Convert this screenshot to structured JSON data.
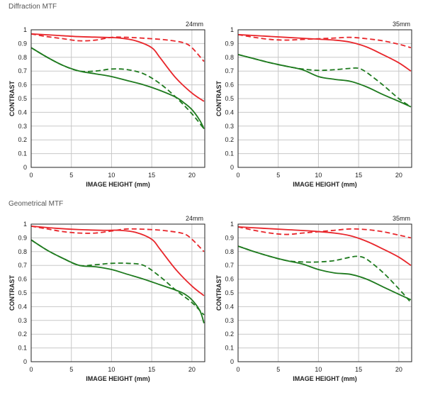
{
  "sections": [
    {
      "label": "Diffraction MTF"
    },
    {
      "label": "Geometrical MTF"
    }
  ],
  "colors": {
    "red": "#e8262b",
    "green": "#1e7a1e",
    "grid": "#c8c8c8",
    "frame": "#222222"
  },
  "chart_data": [
    {
      "type": "line",
      "section": "Diffraction MTF",
      "focal_label": "24mm",
      "xlabel": "IMAGE HEIGHT (mm)",
      "ylabel": "CONTRAST",
      "xlim": [
        0,
        21.6
      ],
      "ylim": [
        0,
        1
      ],
      "xticks": [
        0,
        5,
        10,
        15,
        20
      ],
      "yticks": [
        0,
        0.1,
        0.2,
        0.3,
        0.4,
        0.5,
        0.6,
        0.7,
        0.8,
        0.9,
        1
      ],
      "ytick_labels": [
        "0",
        "0.1",
        "0.2",
        "0.3",
        "0.4",
        "0.5",
        "0.6",
        "0.7",
        "0.8",
        "0.9",
        "1"
      ],
      "grid": true,
      "series": [
        {
          "color": "red",
          "dash": false,
          "points": [
            [
              0,
              0.97
            ],
            [
              3,
              0.96
            ],
            [
              6,
              0.95
            ],
            [
              9,
              0.945
            ],
            [
              11,
              0.94
            ],
            [
              13,
              0.92
            ],
            [
              15,
              0.87
            ],
            [
              16,
              0.8
            ],
            [
              18,
              0.65
            ],
            [
              20,
              0.54
            ],
            [
              21.5,
              0.48
            ]
          ]
        },
        {
          "color": "red",
          "dash": true,
          "points": [
            [
              0,
              0.97
            ],
            [
              2,
              0.95
            ],
            [
              4,
              0.935
            ],
            [
              6,
              0.92
            ],
            [
              8,
              0.925
            ],
            [
              10,
              0.945
            ],
            [
              12,
              0.945
            ],
            [
              15,
              0.935
            ],
            [
              17,
              0.925
            ],
            [
              19,
              0.905
            ],
            [
              20,
              0.87
            ],
            [
              21.5,
              0.77
            ]
          ]
        },
        {
          "color": "green",
          "dash": false,
          "points": [
            [
              0,
              0.87
            ],
            [
              2,
              0.8
            ],
            [
              4,
              0.74
            ],
            [
              6,
              0.7
            ],
            [
              8,
              0.68
            ],
            [
              10,
              0.66
            ],
            [
              12,
              0.63
            ],
            [
              14,
              0.6
            ],
            [
              16,
              0.56
            ],
            [
              18,
              0.51
            ],
            [
              19,
              0.47
            ],
            [
              20,
              0.42
            ],
            [
              21,
              0.34
            ],
            [
              21.5,
              0.28
            ]
          ]
        },
        {
          "color": "green",
          "dash": true,
          "points": [
            [
              0,
              0.87
            ],
            [
              2,
              0.8
            ],
            [
              4,
              0.74
            ],
            [
              6,
              0.7
            ],
            [
              8,
              0.7
            ],
            [
              10,
              0.715
            ],
            [
              12,
              0.71
            ],
            [
              14,
              0.68
            ],
            [
              16,
              0.61
            ],
            [
              18,
              0.51
            ],
            [
              20,
              0.39
            ],
            [
              21.5,
              0.28
            ]
          ]
        }
      ]
    },
    {
      "type": "line",
      "section": "Diffraction MTF",
      "focal_label": "35mm",
      "xlabel": "IMAGE HEIGHT (mm)",
      "ylabel": "CONTRAST",
      "xlim": [
        0,
        21.6
      ],
      "ylim": [
        0,
        1
      ],
      "xticks": [
        0,
        5,
        10,
        15,
        20
      ],
      "yticks": [
        0,
        0.1,
        0.2,
        0.3,
        0.4,
        0.5,
        0.6,
        0.7,
        0.8,
        0.9,
        1
      ],
      "ytick_labels": [
        "0",
        "0.1",
        "0.2",
        "0.3",
        "0.4",
        "0.5",
        "0.6",
        "0.7",
        "0.8",
        "0.9",
        "1"
      ],
      "grid": true,
      "series": [
        {
          "color": "red",
          "dash": false,
          "points": [
            [
              0,
              0.965
            ],
            [
              3,
              0.955
            ],
            [
              6,
              0.945
            ],
            [
              9,
              0.935
            ],
            [
              12,
              0.925
            ],
            [
              14,
              0.91
            ],
            [
              16,
              0.875
            ],
            [
              18,
              0.82
            ],
            [
              20,
              0.76
            ],
            [
              21.5,
              0.7
            ]
          ]
        },
        {
          "color": "red",
          "dash": true,
          "points": [
            [
              0,
              0.965
            ],
            [
              2,
              0.945
            ],
            [
              4,
              0.93
            ],
            [
              6,
              0.925
            ],
            [
              8,
              0.93
            ],
            [
              10,
              0.935
            ],
            [
              12,
              0.94
            ],
            [
              14,
              0.945
            ],
            [
              16,
              0.935
            ],
            [
              18,
              0.92
            ],
            [
              20,
              0.895
            ],
            [
              21.5,
              0.87
            ]
          ]
        },
        {
          "color": "green",
          "dash": false,
          "points": [
            [
              0,
              0.82
            ],
            [
              2,
              0.79
            ],
            [
              4,
              0.76
            ],
            [
              6,
              0.735
            ],
            [
              8,
              0.71
            ],
            [
              10,
              0.66
            ],
            [
              12,
              0.64
            ],
            [
              14,
              0.625
            ],
            [
              16,
              0.585
            ],
            [
              18,
              0.53
            ],
            [
              20,
              0.48
            ],
            [
              21.5,
              0.44
            ]
          ]
        },
        {
          "color": "green",
          "dash": true,
          "points": [
            [
              0,
              0.82
            ],
            [
              2,
              0.79
            ],
            [
              4,
              0.76
            ],
            [
              6,
              0.735
            ],
            [
              8,
              0.715
            ],
            [
              10,
              0.705
            ],
            [
              12,
              0.71
            ],
            [
              14,
              0.72
            ],
            [
              15,
              0.72
            ],
            [
              16,
              0.69
            ],
            [
              18,
              0.6
            ],
            [
              20,
              0.5
            ],
            [
              21.5,
              0.44
            ]
          ]
        }
      ]
    },
    {
      "type": "line",
      "section": "Geometrical MTF",
      "focal_label": "24mm",
      "xlabel": "IMAGE HEIGHT (mm)",
      "ylabel": "CONTRAST",
      "xlim": [
        0,
        21.6
      ],
      "ylim": [
        0,
        1
      ],
      "xticks": [
        0,
        5,
        10,
        15,
        20
      ],
      "yticks": [
        0,
        0.1,
        0.2,
        0.3,
        0.4,
        0.5,
        0.6,
        0.7,
        0.8,
        0.9,
        1
      ],
      "ytick_labels": [
        "0",
        "0.1",
        "0.2",
        "0.3",
        "0.4",
        "0.5",
        "0.6",
        "0.7",
        "0.8",
        "0.9",
        "1"
      ],
      "grid": true,
      "series": [
        {
          "color": "red",
          "dash": false,
          "points": [
            [
              0,
              0.985
            ],
            [
              3,
              0.97
            ],
            [
              6,
              0.96
            ],
            [
              9,
              0.955
            ],
            [
              11,
              0.955
            ],
            [
              13,
              0.94
            ],
            [
              15,
              0.89
            ],
            [
              16,
              0.82
            ],
            [
              18,
              0.67
            ],
            [
              20,
              0.55
            ],
            [
              21.5,
              0.48
            ]
          ]
        },
        {
          "color": "red",
          "dash": true,
          "points": [
            [
              0,
              0.985
            ],
            [
              2,
              0.965
            ],
            [
              4,
              0.945
            ],
            [
              6,
              0.935
            ],
            [
              8,
              0.935
            ],
            [
              10,
              0.95
            ],
            [
              12,
              0.965
            ],
            [
              15,
              0.96
            ],
            [
              17,
              0.95
            ],
            [
              19,
              0.93
            ],
            [
              20,
              0.89
            ],
            [
              21.5,
              0.8
            ]
          ]
        },
        {
          "color": "green",
          "dash": false,
          "points": [
            [
              0,
              0.885
            ],
            [
              2,
              0.81
            ],
            [
              4,
              0.75
            ],
            [
              6,
              0.7
            ],
            [
              8,
              0.69
            ],
            [
              10,
              0.67
            ],
            [
              12,
              0.635
            ],
            [
              14,
              0.6
            ],
            [
              16,
              0.56
            ],
            [
              18,
              0.52
            ],
            [
              19,
              0.495
            ],
            [
              20,
              0.45
            ],
            [
              21,
              0.37
            ],
            [
              21.5,
              0.28
            ]
          ]
        },
        {
          "color": "green",
          "dash": true,
          "points": [
            [
              0,
              0.885
            ],
            [
              2,
              0.81
            ],
            [
              4,
              0.75
            ],
            [
              6,
              0.7
            ],
            [
              8,
              0.705
            ],
            [
              10,
              0.715
            ],
            [
              12,
              0.715
            ],
            [
              14,
              0.7
            ],
            [
              16,
              0.62
            ],
            [
              18,
              0.52
            ],
            [
              20,
              0.43
            ],
            [
              21.5,
              0.34
            ]
          ]
        }
      ]
    },
    {
      "type": "line",
      "section": "Geometrical MTF",
      "focal_label": "35mm",
      "xlabel": "IMAGE HEIGHT (mm)",
      "ylabel": "CONTRAST",
      "xlim": [
        0,
        21.6
      ],
      "ylim": [
        0,
        1
      ],
      "xticks": [
        0,
        5,
        10,
        15,
        20
      ],
      "yticks": [
        0,
        0.1,
        0.2,
        0.3,
        0.4,
        0.5,
        0.6,
        0.7,
        0.8,
        0.9,
        1
      ],
      "ytick_labels": [
        "0",
        "0.1",
        "0.2",
        "0.3",
        "0.4",
        "0.5",
        "0.6",
        "0.7",
        "0.8",
        "0.9",
        "1"
      ],
      "grid": true,
      "series": [
        {
          "color": "red",
          "dash": false,
          "points": [
            [
              0,
              0.98
            ],
            [
              3,
              0.97
            ],
            [
              6,
              0.96
            ],
            [
              9,
              0.95
            ],
            [
              12,
              0.935
            ],
            [
              14,
              0.915
            ],
            [
              16,
              0.875
            ],
            [
              18,
              0.82
            ],
            [
              20,
              0.76
            ],
            [
              21.5,
              0.7
            ]
          ]
        },
        {
          "color": "red",
          "dash": true,
          "points": [
            [
              0,
              0.98
            ],
            [
              2,
              0.955
            ],
            [
              4,
              0.935
            ],
            [
              6,
              0.925
            ],
            [
              8,
              0.935
            ],
            [
              10,
              0.945
            ],
            [
              12,
              0.955
            ],
            [
              14,
              0.965
            ],
            [
              16,
              0.96
            ],
            [
              18,
              0.945
            ],
            [
              20,
              0.92
            ],
            [
              21.5,
              0.9
            ]
          ]
        },
        {
          "color": "green",
          "dash": false,
          "points": [
            [
              0,
              0.84
            ],
            [
              2,
              0.8
            ],
            [
              4,
              0.765
            ],
            [
              6,
              0.735
            ],
            [
              8,
              0.71
            ],
            [
              10,
              0.67
            ],
            [
              12,
              0.645
            ],
            [
              14,
              0.635
            ],
            [
              16,
              0.6
            ],
            [
              18,
              0.545
            ],
            [
              20,
              0.49
            ],
            [
              21.5,
              0.45
            ]
          ]
        },
        {
          "color": "green",
          "dash": true,
          "points": [
            [
              0,
              0.84
            ],
            [
              2,
              0.8
            ],
            [
              4,
              0.765
            ],
            [
              6,
              0.735
            ],
            [
              8,
              0.725
            ],
            [
              10,
              0.725
            ],
            [
              12,
              0.735
            ],
            [
              14,
              0.76
            ],
            [
              15,
              0.765
            ],
            [
              16,
              0.745
            ],
            [
              18,
              0.65
            ],
            [
              20,
              0.53
            ],
            [
              21.5,
              0.43
            ]
          ]
        }
      ]
    }
  ]
}
